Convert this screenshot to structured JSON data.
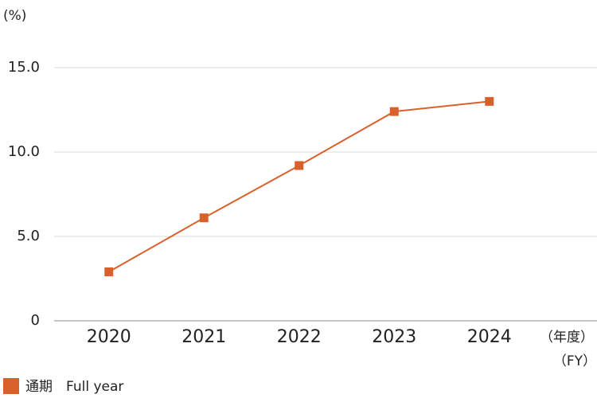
{
  "chart_data": {
    "type": "line",
    "y_label": "(%)",
    "x_label": "（年度）",
    "x_label_en": "（FY）",
    "categories": [
      "2020",
      "2021",
      "2022",
      "2023",
      "2024"
    ],
    "series": [
      {
        "name": "通期　Full year",
        "color": "#d9602a",
        "values": [
          2.9,
          6.1,
          9.2,
          12.4,
          13.0
        ]
      }
    ],
    "ylim": [
      0,
      15
    ],
    "yticks": [
      0,
      {
        "value": 5,
        "label": "5.0"
      },
      {
        "value": 10,
        "label": "10.0"
      },
      {
        "value": 15,
        "label": "15.0"
      }
    ],
    "grid": true
  }
}
